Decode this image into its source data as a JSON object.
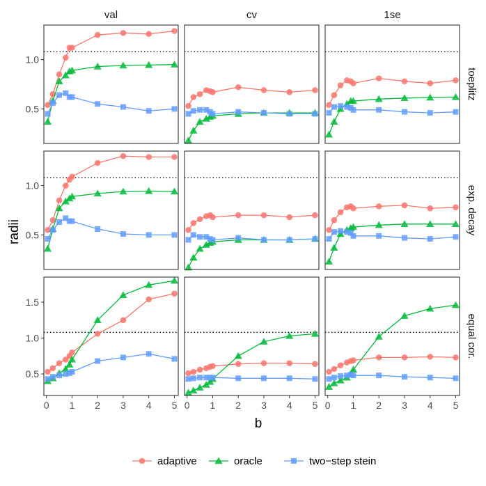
{
  "chart_data": {
    "type": "line",
    "xlabel": "b",
    "ylabel": "radii",
    "x": [
      0.05,
      0.25,
      0.5,
      0.75,
      0.9,
      1,
      2,
      3,
      4,
      5
    ],
    "xticks": [
      0,
      1,
      2,
      3,
      4,
      5
    ],
    "xlim": [
      -0.1,
      5.15
    ],
    "columns": [
      "val",
      "cv",
      "1se"
    ],
    "rows": [
      {
        "label": "toeplitz",
        "ylim": [
          0.15,
          1.35
        ],
        "yticks": [
          0.5,
          1.0
        ],
        "ytick_labels": [
          "0.5",
          "1.0"
        ]
      },
      {
        "label": "exp. decay",
        "ylim": [
          0.15,
          1.35
        ],
        "yticks": [
          0.5,
          1.0
        ],
        "ytick_labels": [
          "0.5",
          "1.0"
        ]
      },
      {
        "label": "equal cor.",
        "ylim": [
          0.2,
          1.85
        ],
        "yticks": [
          0.5,
          1.0,
          1.5
        ],
        "ytick_labels": [
          "0.5",
          "1.0",
          "1.5"
        ]
      }
    ],
    "reference_line": {
      "y": 1.08,
      "style": "dotted"
    },
    "legend": {
      "position": "bottom",
      "entries": [
        {
          "name": "adaptive",
          "color": "#F8766D",
          "marker": "circle"
        },
        {
          "name": "oracle",
          "color": "#00BA38",
          "marker": "triangle"
        },
        {
          "name": "two−step stein",
          "color": "#619CFF",
          "marker": "square"
        }
      ]
    },
    "panels": [
      {
        "row": 0,
        "col": 0,
        "series": [
          {
            "name": "adaptive",
            "values": [
              0.54,
              0.65,
              0.85,
              1.02,
              1.12,
              1.12,
              1.25,
              1.27,
              1.26,
              1.29
            ]
          },
          {
            "name": "oracle",
            "values": [
              0.37,
              0.58,
              0.78,
              0.84,
              0.88,
              0.89,
              0.93,
              0.94,
              0.945,
              0.95
            ]
          },
          {
            "name": "two−step stein",
            "values": [
              0.45,
              0.56,
              0.64,
              0.66,
              0.62,
              0.62,
              0.55,
              0.52,
              0.48,
              0.5
            ]
          }
        ]
      },
      {
        "row": 0,
        "col": 1,
        "series": [
          {
            "name": "adaptive",
            "values": [
              0.53,
              0.62,
              0.65,
              0.69,
              0.68,
              0.67,
              0.72,
              0.69,
              0.67,
              0.69
            ]
          },
          {
            "name": "oracle",
            "values": [
              0.18,
              0.28,
              0.37,
              0.4,
              0.42,
              0.43,
              0.45,
              0.46,
              0.46,
              0.46
            ]
          },
          {
            "name": "two−step stein",
            "values": [
              0.45,
              0.48,
              0.49,
              0.49,
              0.47,
              0.45,
              0.47,
              0.46,
              0.45,
              0.45
            ]
          }
        ]
      },
      {
        "row": 0,
        "col": 2,
        "series": [
          {
            "name": "adaptive",
            "values": [
              0.54,
              0.64,
              0.74,
              0.79,
              0.78,
              0.76,
              0.81,
              0.78,
              0.76,
              0.79
            ]
          },
          {
            "name": "oracle",
            "values": [
              0.24,
              0.37,
              0.5,
              0.55,
              0.58,
              0.58,
              0.6,
              0.61,
              0.615,
              0.62
            ]
          },
          {
            "name": "two−step stein",
            "values": [
              0.46,
              0.52,
              0.53,
              0.52,
              0.51,
              0.49,
              0.49,
              0.47,
              0.46,
              0.47
            ]
          }
        ]
      },
      {
        "row": 1,
        "col": 0,
        "series": [
          {
            "name": "adaptive",
            "values": [
              0.55,
              0.65,
              0.85,
              1.0,
              1.06,
              1.09,
              1.23,
              1.3,
              1.29,
              1.29
            ]
          },
          {
            "name": "oracle",
            "values": [
              0.36,
              0.56,
              0.77,
              0.84,
              0.87,
              0.89,
              0.92,
              0.94,
              0.945,
              0.94
            ]
          },
          {
            "name": "two−step stein",
            "values": [
              0.46,
              0.55,
              0.63,
              0.67,
              0.64,
              0.64,
              0.56,
              0.51,
              0.5,
              0.5
            ]
          }
        ]
      },
      {
        "row": 1,
        "col": 1,
        "series": [
          {
            "name": "adaptive",
            "values": [
              0.55,
              0.62,
              0.66,
              0.69,
              0.7,
              0.68,
              0.7,
              0.7,
              0.68,
              0.7
            ]
          },
          {
            "name": "oracle",
            "values": [
              0.17,
              0.27,
              0.36,
              0.4,
              0.42,
              0.43,
              0.45,
              0.45,
              0.45,
              0.46
            ]
          },
          {
            "name": "two−step stein",
            "values": [
              0.45,
              0.5,
              0.48,
              0.48,
              0.46,
              0.45,
              0.47,
              0.45,
              0.45,
              0.46
            ]
          }
        ]
      },
      {
        "row": 1,
        "col": 2,
        "series": [
          {
            "name": "adaptive",
            "values": [
              0.55,
              0.65,
              0.73,
              0.78,
              0.79,
              0.77,
              0.79,
              0.8,
              0.77,
              0.78
            ]
          },
          {
            "name": "oracle",
            "values": [
              0.23,
              0.37,
              0.51,
              0.55,
              0.57,
              0.58,
              0.6,
              0.61,
              0.61,
              0.61
            ]
          },
          {
            "name": "two−step stein",
            "values": [
              0.46,
              0.53,
              0.54,
              0.53,
              0.52,
              0.49,
              0.49,
              0.47,
              0.46,
              0.48
            ]
          }
        ]
      },
      {
        "row": 2,
        "col": 0,
        "series": [
          {
            "name": "adaptive",
            "values": [
              0.53,
              0.58,
              0.65,
              0.7,
              0.75,
              0.8,
              1.06,
              1.25,
              1.54,
              1.62
            ]
          },
          {
            "name": "oracle",
            "values": [
              0.4,
              0.44,
              0.51,
              0.57,
              0.63,
              0.7,
              1.25,
              1.6,
              1.74,
              1.8
            ]
          },
          {
            "name": "two−step stein",
            "values": [
              0.43,
              0.46,
              0.48,
              0.5,
              0.51,
              0.53,
              0.68,
              0.73,
              0.78,
              0.71
            ]
          }
        ]
      },
      {
        "row": 2,
        "col": 1,
        "series": [
          {
            "name": "adaptive",
            "values": [
              0.51,
              0.53,
              0.56,
              0.58,
              0.6,
              0.61,
              0.64,
              0.65,
              0.65,
              0.64
            ]
          },
          {
            "name": "oracle",
            "values": [
              0.24,
              0.27,
              0.31,
              0.35,
              0.39,
              0.43,
              0.75,
              0.95,
              1.03,
              1.06
            ]
          },
          {
            "name": "two−step stein",
            "values": [
              0.43,
              0.44,
              0.45,
              0.45,
              0.45,
              0.45,
              0.44,
              0.44,
              0.44,
              0.43
            ]
          }
        ]
      },
      {
        "row": 2,
        "col": 2,
        "series": [
          {
            "name": "adaptive",
            "values": [
              0.53,
              0.57,
              0.62,
              0.66,
              0.68,
              0.69,
              0.73,
              0.73,
              0.74,
              0.73
            ]
          },
          {
            "name": "oracle",
            "values": [
              0.32,
              0.37,
              0.41,
              0.45,
              0.5,
              0.56,
              1.02,
              1.31,
              1.41,
              1.46
            ]
          },
          {
            "name": "two−step stein",
            "values": [
              0.43,
              0.45,
              0.47,
              0.48,
              0.49,
              0.48,
              0.48,
              0.46,
              0.45,
              0.44
            ]
          }
        ]
      }
    ]
  }
}
